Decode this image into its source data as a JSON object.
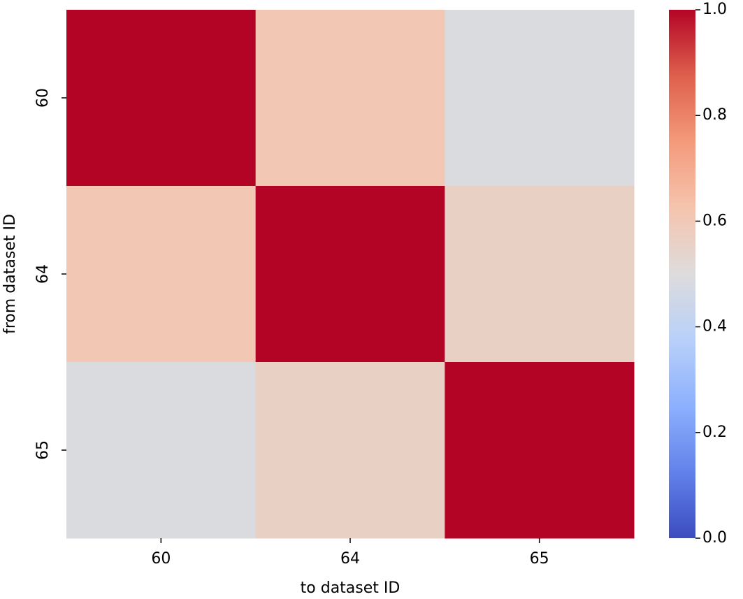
{
  "chart_data": {
    "type": "heatmap",
    "x_categories": [
      "60",
      "64",
      "65"
    ],
    "y_categories": [
      "60",
      "64",
      "65"
    ],
    "values": [
      [
        1.0,
        0.61,
        0.49
      ],
      [
        0.61,
        1.0,
        0.56
      ],
      [
        0.49,
        0.56,
        1.0
      ]
    ],
    "xlabel": "to dataset ID",
    "ylabel": "from dataset ID",
    "colormap": "coolwarm",
    "clim": [
      0,
      1
    ],
    "cticks": [
      {
        "value": 0,
        "label": "0.0"
      },
      0.2,
      0.4,
      0.6,
      0.8,
      {
        "value": 1,
        "label": "1.0"
      }
    ]
  }
}
